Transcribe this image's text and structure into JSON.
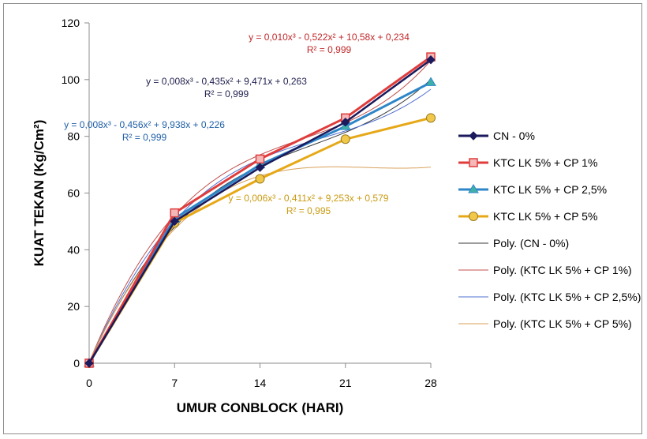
{
  "chart_data": {
    "type": "line",
    "title": "",
    "xlabel": "UMUR CONBLOCK (HARI)",
    "ylabel": "KUAT TEKAN (Kg/Cm²)",
    "xlim": [
      0,
      28
    ],
    "ylim": [
      0,
      120
    ],
    "x_ticks": [
      "0",
      "7",
      "14",
      "21",
      "28"
    ],
    "y_ticks": [
      "0",
      "20",
      "40",
      "60",
      "80",
      "100",
      "120"
    ],
    "grid": false,
    "legend_position": "right",
    "x": [
      0,
      7,
      14,
      21,
      28
    ],
    "series": [
      {
        "name": "CN - 0%",
        "values": [
          0,
          50,
          69,
          85,
          107
        ],
        "color": "#1a1a5c",
        "marker": "diamond"
      },
      {
        "name": "KTC LK 5% + CP 1%",
        "values": [
          0,
          53,
          72,
          86.5,
          108
        ],
        "color": "#e03c3c",
        "marker": "square"
      },
      {
        "name": "KTC LK 5% + CP 2,5%",
        "values": [
          0,
          51,
          70,
          83.5,
          99
        ],
        "color": "#2e86c8",
        "marker": "triangle"
      },
      {
        "name": "KTC LK 5% + CP 5%",
        "values": [
          0,
          49.5,
          65,
          79,
          86.5
        ],
        "color": "#e6a817",
        "marker": "circle"
      }
    ],
    "trendlines": [
      {
        "name": "Poly. (CN - 0%)",
        "coeffs": [
          0.008,
          -0.435,
          9.471,
          0.263
        ],
        "color": "#3a3a3a",
        "equation": "y = 0,008x³ - 0,435x² + 9,471x + 0,263",
        "r2": "R² = 0,999",
        "label_color": "#1f1f4f"
      },
      {
        "name": "Poly. (KTC LK 5% + CP 1%)",
        "coeffs": [
          0.01,
          -0.522,
          10.58,
          0.234
        ],
        "color": "#c0504d",
        "equation": "y = 0,010x³ - 0,522x² + 10,58x + 0,234",
        "r2": "R² = 0,999",
        "label_color": "#c0282a"
      },
      {
        "name": "Poly. (KTC LK 5% + CP 2,5%)",
        "coeffs": [
          0.008,
          -0.456,
          9.938,
          0.226
        ],
        "color": "#4f6fd0",
        "equation": "y = 0,008x³ - 0,456x² + 9,938x + 0,226",
        "r2": "R² = 0,999",
        "label_color": "#1f5fa8"
      },
      {
        "name": "Poly. (KTC LK 5% + CP 5%)",
        "coeffs": [
          0.006,
          -0.411,
          9.253,
          0.579
        ],
        "color": "#d9a05a",
        "equation": "y = 0,006x³ - 0,411x² + 9,253x + 0,579",
        "r2": "R² = 0,995",
        "label_color": "#c99a10"
      }
    ]
  }
}
